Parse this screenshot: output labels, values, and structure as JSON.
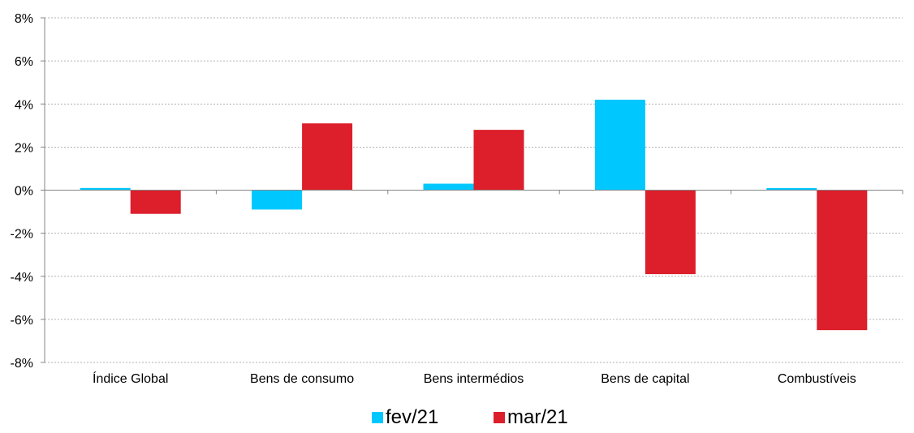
{
  "chart_data": {
    "type": "bar",
    "categories": [
      "Índice Global",
      "Bens de consumo",
      "Bens intermédios",
      "Bens de capital",
      "Combustíveis"
    ],
    "series": [
      {
        "name": "fev/21",
        "color": "#00c8ff",
        "values": [
          0.1,
          -0.9,
          0.3,
          4.2,
          0.0
        ]
      },
      {
        "name": "mar/21",
        "color": "#dc1f2b",
        "values": [
          -1.1,
          3.1,
          2.8,
          -3.9,
          -6.5
        ]
      }
    ],
    "ylim": [
      -8,
      8
    ],
    "yticks": [
      -8,
      -6,
      -4,
      -2,
      0,
      2,
      4,
      6,
      8
    ],
    "ytick_labels": [
      "-8%",
      "-6%",
      "-4%",
      "-2%",
      "0%",
      "2%",
      "4%",
      "6%",
      "8%"
    ],
    "grid": true,
    "legend_position": "bottom"
  }
}
